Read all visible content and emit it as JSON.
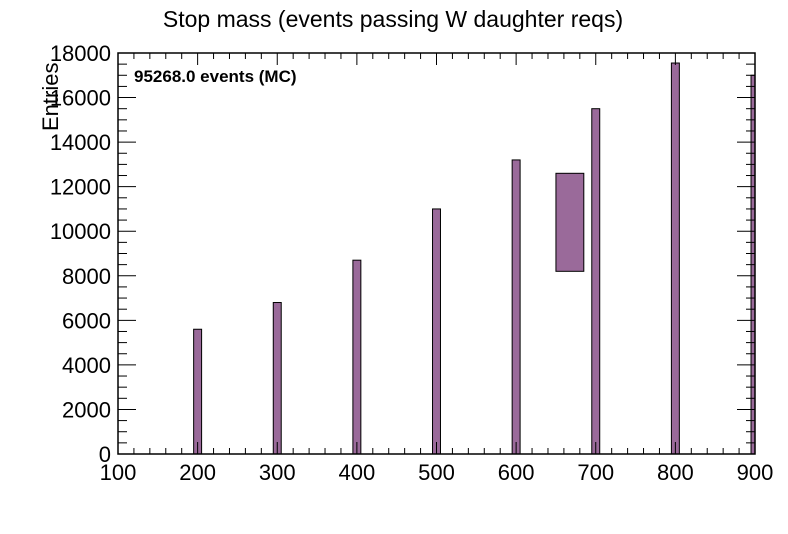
{
  "chart_data": {
    "type": "bar",
    "title": "Stop mass (events passing W daughter reqs)",
    "annotation": "95268.0 events (MC)",
    "ylabel": "Entries",
    "xlabel": "",
    "xlim": [
      100,
      900
    ],
    "ylim": [
      0,
      18000
    ],
    "x_ticks": [
      "100",
      "200",
      "300",
      "400",
      "500",
      "600",
      "700",
      "800",
      "900"
    ],
    "y_ticks": [
      "0",
      "2000",
      "4000",
      "6000",
      "8000",
      "10000",
      "12000",
      "14000",
      "16000",
      "18000"
    ],
    "bin_width": 10,
    "bars": [
      {
        "x": 200,
        "value": 5600
      },
      {
        "x": 300,
        "value": 6800
      },
      {
        "x": 400,
        "value": 8700
      },
      {
        "x": 500,
        "value": 11000
      },
      {
        "x": 600,
        "value": 13200
      },
      {
        "x": 700,
        "value": 15500
      },
      {
        "x": 800,
        "value": 17550
      },
      {
        "x": 900,
        "value": 17000
      }
    ],
    "box": {
      "x_low": 650,
      "x_high": 685,
      "y_low": 8200,
      "y_high": 12600
    },
    "grid": false,
    "bar_color": "#9a6a9a",
    "bar_edge_color": "#000000"
  }
}
